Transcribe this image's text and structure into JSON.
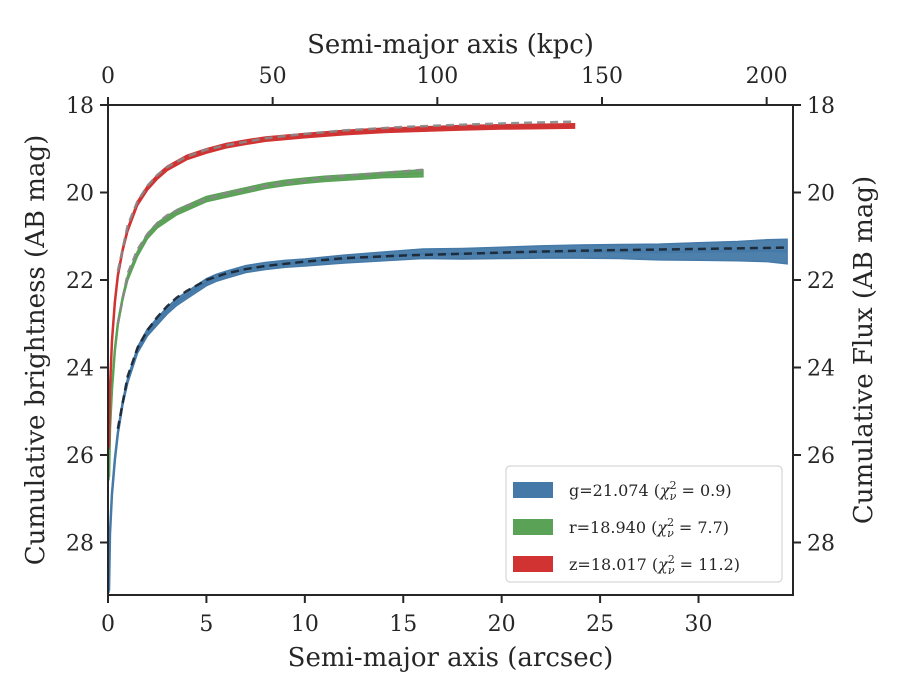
{
  "chart_data": {
    "type": "line",
    "xlabel": "Semi-major axis (arcsec)",
    "x2label": "Semi-major axis (kpc)",
    "ylabel": "Cumulative brightness (AB mag)",
    "y2label": "Cumulative Flux (AB mag)",
    "xlim": [
      0,
      34.8
    ],
    "ylim": [
      29.2,
      18.0
    ],
    "x2lim": [
      0,
      208
    ],
    "y_inverted": true,
    "xticks": [
      "0",
      "5",
      "10",
      "15",
      "20",
      "25",
      "30"
    ],
    "x2ticks": [
      "0",
      "50",
      "100",
      "150",
      "200"
    ],
    "yticks": [
      "18",
      "20",
      "22",
      "24",
      "26",
      "28"
    ],
    "legend_position": "lower-right",
    "series": [
      {
        "name": "g=21.074 (χ²ν = 0.9)",
        "legend_main": "g=21.074 (",
        "legend_chi": "χ",
        "legend_sup": "2",
        "legend_sub": "ν",
        "legend_tail": " = 0.9)",
        "color": "#4479a8",
        "fit_color": "#1a2330",
        "x": [
          0.05,
          0.1,
          0.2,
          0.35,
          0.5,
          0.75,
          1.0,
          1.5,
          2.0,
          2.5,
          3.0,
          3.5,
          4.0,
          4.5,
          5.0,
          5.5,
          6.0,
          7.0,
          8.0,
          9.0,
          10.0,
          12.0,
          14.0,
          16.0,
          18.0,
          20.0,
          22.0,
          24.0,
          26.0,
          28.0,
          30.0,
          32.0,
          33.5,
          34.5
        ],
        "y": [
          29.1,
          27.8,
          26.9,
          26.1,
          25.5,
          24.8,
          24.3,
          23.6,
          23.2,
          22.95,
          22.7,
          22.5,
          22.35,
          22.2,
          22.05,
          21.95,
          21.88,
          21.75,
          21.68,
          21.63,
          21.6,
          21.52,
          21.46,
          21.4,
          21.4,
          21.38,
          21.36,
          21.35,
          21.35,
          21.36,
          21.35,
          21.34,
          21.33,
          21.35
        ],
        "width": [
          0.05,
          0.05,
          0.05,
          0.05,
          0.05,
          0.06,
          0.06,
          0.07,
          0.08,
          0.08,
          0.08,
          0.08,
          0.08,
          0.08,
          0.08,
          0.08,
          0.08,
          0.08,
          0.08,
          0.08,
          0.08,
          0.09,
          0.1,
          0.11,
          0.12,
          0.13,
          0.14,
          0.15,
          0.16,
          0.18,
          0.2,
          0.22,
          0.25,
          0.28
        ],
        "fit_x": [
          0.5,
          1.0,
          1.5,
          2.0,
          2.5,
          3.0,
          3.5,
          4.0,
          5.0,
          6.0,
          7.0,
          8.0,
          10.0,
          12.0,
          15.0,
          18.0,
          21.0,
          24.0,
          27.0,
          30.0,
          33.0,
          34.5
        ],
        "fit_y": [
          25.4,
          24.2,
          23.55,
          23.15,
          22.85,
          22.6,
          22.4,
          22.25,
          22.0,
          21.85,
          21.75,
          21.68,
          21.58,
          21.5,
          21.44,
          21.4,
          21.36,
          21.33,
          21.31,
          21.29,
          21.27,
          21.26
        ]
      },
      {
        "name": "r=18.940 (χ²ν = 7.7)",
        "legend_main": "r=18.940 (",
        "legend_chi": "χ",
        "legend_sup": "2",
        "legend_sub": "ν",
        "legend_tail": " = 7.7)",
        "color": "#5aa256",
        "fit_color": "#888888",
        "x": [
          0.05,
          0.1,
          0.2,
          0.35,
          0.5,
          0.75,
          1.0,
          1.5,
          2.0,
          2.5,
          3.0,
          3.5,
          4.0,
          5.0,
          6.0,
          7.0,
          8.0,
          9.0,
          10.0,
          11.0,
          12.0,
          13.0,
          14.0,
          15.0,
          16.0
        ],
        "y": [
          26.5,
          25.4,
          24.5,
          23.6,
          23.0,
          22.4,
          21.95,
          21.4,
          21.0,
          20.75,
          20.6,
          20.45,
          20.35,
          20.15,
          20.05,
          19.95,
          19.85,
          19.78,
          19.73,
          19.69,
          19.66,
          19.63,
          19.6,
          19.58,
          19.56
        ],
        "width": [
          0.08,
          0.08,
          0.07,
          0.07,
          0.06,
          0.06,
          0.06,
          0.06,
          0.06,
          0.06,
          0.06,
          0.06,
          0.06,
          0.06,
          0.06,
          0.06,
          0.06,
          0.06,
          0.06,
          0.06,
          0.06,
          0.06,
          0.06,
          0.07,
          0.08
        ],
        "fit_x": [
          0.5,
          1.0,
          1.5,
          2.0,
          2.5,
          3.0,
          4.0,
          5.0,
          6.0,
          8.0,
          10.0,
          12.0,
          14.0,
          16.0
        ],
        "fit_y": [
          23.0,
          21.85,
          21.3,
          20.95,
          20.7,
          20.52,
          20.3,
          20.15,
          20.02,
          19.85,
          19.72,
          19.62,
          19.55,
          19.48
        ]
      },
      {
        "name": "z=18.017 (χ²ν = 11.2)",
        "legend_main": "z=18.017 (",
        "legend_chi": "χ",
        "legend_sup": "2",
        "legend_sub": "ν",
        "legend_tail": " = 11.2)",
        "color": "#d13232",
        "fit_color": "#888888",
        "x": [
          0.05,
          0.1,
          0.2,
          0.35,
          0.5,
          0.75,
          1.0,
          1.5,
          2.0,
          2.5,
          3.0,
          4.0,
          5.0,
          6.0,
          7.0,
          8.0,
          10.0,
          12.0,
          14.0,
          16.0,
          18.0,
          20.0,
          22.0,
          23.7
        ],
        "y": [
          25.8,
          24.5,
          23.4,
          22.5,
          21.9,
          21.3,
          20.85,
          20.25,
          19.9,
          19.65,
          19.45,
          19.2,
          19.05,
          18.93,
          18.85,
          18.78,
          18.7,
          18.63,
          18.58,
          18.55,
          18.52,
          18.5,
          18.49,
          18.48
        ],
        "width": [
          0.07,
          0.07,
          0.06,
          0.06,
          0.05,
          0.05,
          0.05,
          0.05,
          0.05,
          0.05,
          0.05,
          0.05,
          0.05,
          0.05,
          0.05,
          0.05,
          0.05,
          0.05,
          0.05,
          0.05,
          0.05,
          0.05,
          0.05,
          0.05
        ],
        "fit_x": [
          0.5,
          1.0,
          1.5,
          2.0,
          2.5,
          3.0,
          4.0,
          5.0,
          6.0,
          8.0,
          10.0,
          12.0,
          15.0,
          18.0,
          21.0,
          23.7
        ],
        "fit_y": [
          21.8,
          20.75,
          20.2,
          19.85,
          19.6,
          19.42,
          19.18,
          19.02,
          18.92,
          18.76,
          18.66,
          18.58,
          18.5,
          18.45,
          18.41,
          18.38
        ]
      }
    ]
  }
}
